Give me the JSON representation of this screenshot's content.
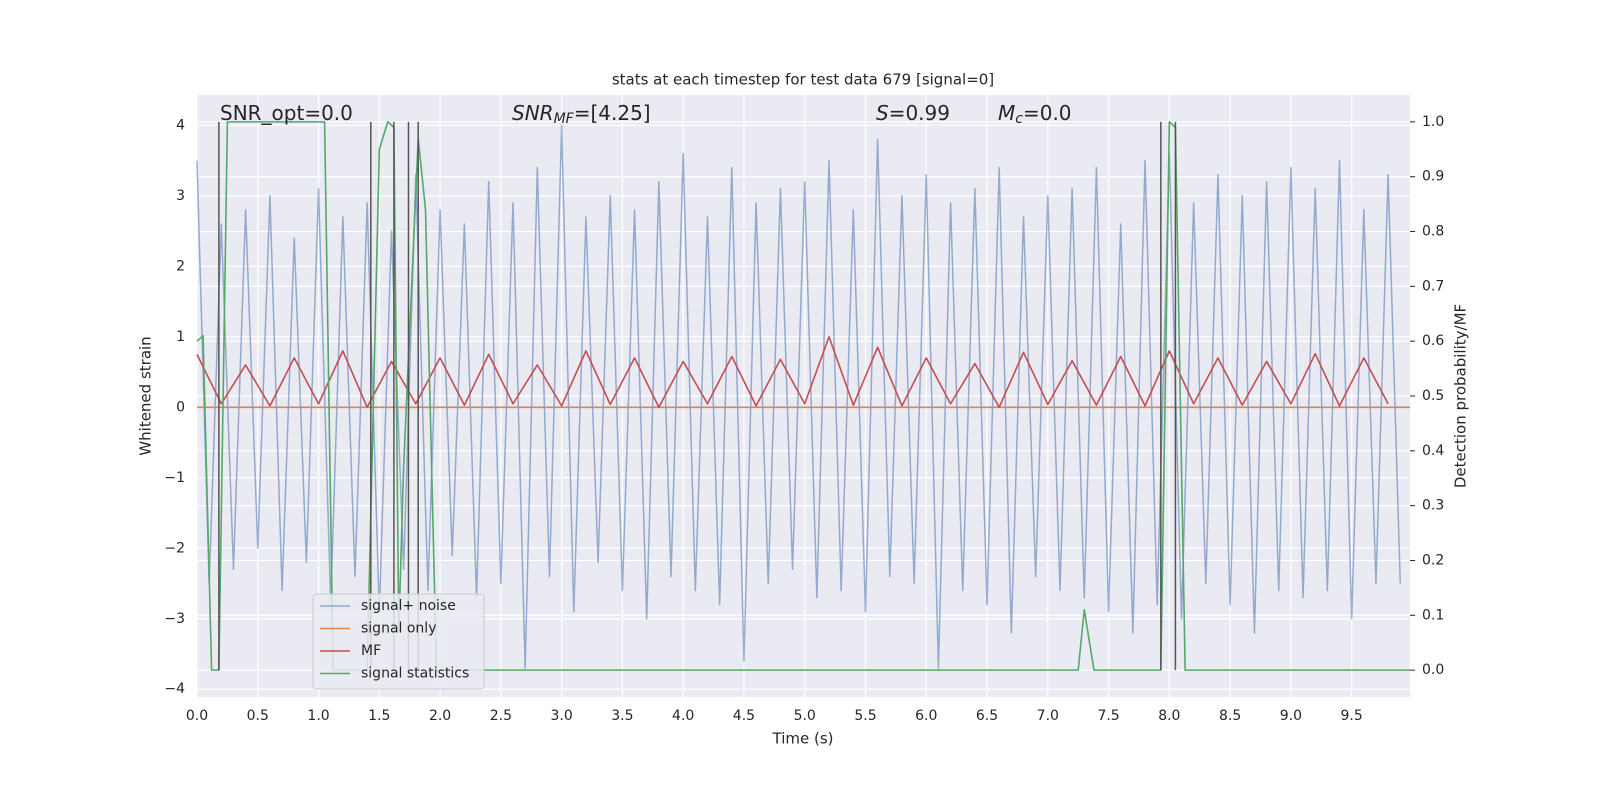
{
  "chart_data": {
    "type": "line",
    "title": "stats at each timestep for test data 679 [signal=0]",
    "xlabel": "Time (s)",
    "ylabel": "Whitened strain",
    "y2label": "Detection probability/MF",
    "annotations": [
      {
        "parts": [
          "SNR_opt=0.0"
        ]
      },
      {
        "parts": [
          "SNR",
          "MF",
          "=[4.25]"
        ]
      },
      {
        "parts": [
          "S",
          "=0.99"
        ]
      },
      {
        "parts": [
          "M",
          "c",
          "=0.0"
        ]
      }
    ],
    "xlim": [
      0,
      9.98
    ],
    "ylim": [
      -4.11,
      4.43
    ],
    "y2lim": [
      -0.049,
      1.049
    ],
    "grid": true,
    "legend": "lower left",
    "xticks": [
      {
        "value": 0,
        "label": "0.0"
      },
      0.5,
      {
        "value": 1,
        "label": "1.0"
      },
      1.5,
      {
        "value": 2,
        "label": "2.0"
      },
      2.5,
      {
        "value": 3,
        "label": "3.0"
      },
      3.5,
      {
        "value": 4,
        "label": "4.0"
      },
      4.5,
      {
        "value": 5,
        "label": "5.0"
      },
      5.5,
      {
        "value": 6,
        "label": "6.0"
      },
      6.5,
      {
        "value": 7,
        "label": "7.0"
      },
      7.5,
      {
        "value": 8,
        "label": "8.0"
      },
      8.5,
      {
        "value": 9,
        "label": "9.0"
      },
      9.5
    ],
    "yticks": [
      {
        "value": -4,
        "label": "−4"
      },
      {
        "value": -3,
        "label": "−3"
      },
      {
        "value": -2,
        "label": "−2"
      },
      {
        "value": -1,
        "label": "−1"
      },
      0,
      1,
      2,
      3,
      4
    ],
    "y2ticks": [
      {
        "value": 0,
        "label": "0.0"
      },
      0.1,
      0.2,
      0.3,
      0.4,
      0.5,
      0.6,
      0.7,
      0.8,
      0.9,
      {
        "value": 1,
        "label": "1.0"
      }
    ],
    "vlines": [
      0.18,
      1.43,
      1.62,
      1.74,
      1.82,
      7.93,
      8.05
    ],
    "vline_color": "#555555",
    "series": [
      {
        "name": "signal+ noise",
        "color": "#4c72b0",
        "x": [
          0.0,
          0.1,
          0.2,
          0.3,
          0.4,
          0.5,
          0.6,
          0.7,
          0.8,
          0.9,
          1.0,
          1.1,
          1.2,
          1.3,
          1.4,
          1.5,
          1.6,
          1.7,
          1.8,
          1.9,
          2.0,
          2.1,
          2.2,
          2.3,
          2.4,
          2.5,
          2.6,
          2.7,
          2.8,
          2.9,
          3.0,
          3.1,
          3.2,
          3.3,
          3.4,
          3.5,
          3.6,
          3.7,
          3.8,
          3.9,
          4.0,
          4.1,
          4.2,
          4.3,
          4.4,
          4.5,
          4.6,
          4.7,
          4.8,
          4.9,
          5.0,
          5.1,
          5.2,
          5.3,
          5.4,
          5.5,
          5.6,
          5.7,
          5.8,
          5.9,
          6.0,
          6.1,
          6.2,
          6.3,
          6.4,
          6.5,
          6.6,
          6.7,
          6.8,
          6.9,
          7.0,
          7.1,
          7.2,
          7.3,
          7.4,
          7.5,
          7.6,
          7.7,
          7.8,
          7.9,
          8.0,
          8.1,
          8.2,
          8.3,
          8.4,
          8.5,
          8.6,
          8.7,
          8.8,
          8.9,
          9.0,
          9.1,
          9.2,
          9.3,
          9.4,
          9.5,
          9.6,
          9.7,
          9.8,
          9.9
        ],
        "values": [
          3.5,
          -2.5,
          2.6,
          -2.3,
          2.8,
          -2.0,
          3.0,
          -2.6,
          2.4,
          -2.2,
          3.1,
          -2.8,
          2.7,
          -2.4,
          2.9,
          -2.9,
          2.5,
          -2.3,
          3.3,
          -2.6,
          2.8,
          -2.1,
          2.6,
          -2.7,
          3.2,
          -2.5,
          2.9,
          -3.7,
          3.4,
          -2.4,
          4.0,
          -2.9,
          2.7,
          -2.2,
          3.0,
          -2.6,
          2.8,
          -3.0,
          3.2,
          -2.4,
          3.6,
          -2.6,
          2.7,
          -2.8,
          3.4,
          -3.6,
          2.9,
          -2.5,
          3.1,
          -2.3,
          3.2,
          -2.7,
          3.5,
          -2.6,
          2.8,
          -2.9,
          3.8,
          -2.4,
          3.0,
          -2.5,
          3.3,
          -3.7,
          2.9,
          -2.6,
          3.1,
          -2.8,
          3.4,
          -3.2,
          2.7,
          -2.4,
          3.0,
          -2.6,
          3.1,
          -2.7,
          3.4,
          -2.9,
          2.6,
          -3.2,
          3.5,
          -2.8,
          3.6,
          -3.0,
          2.9,
          -2.5,
          3.3,
          -2.8,
          3.0,
          -3.2,
          3.2,
          -2.6,
          3.4,
          -2.7,
          3.1,
          -2.6,
          3.5,
          -3.0,
          2.8,
          -2.5,
          3.3,
          -2.5
        ]
      },
      {
        "name": "signal only",
        "color": "#dd8452",
        "x": [
          0,
          9.98
        ],
        "values": [
          0,
          0
        ]
      },
      {
        "name": "MF",
        "color": "#c44e52",
        "x": [
          0.0,
          0.2,
          0.4,
          0.6,
          0.8,
          1.0,
          1.2,
          1.4,
          1.6,
          1.8,
          2.0,
          2.2,
          2.4,
          2.6,
          2.8,
          3.0,
          3.2,
          3.4,
          3.6,
          3.8,
          4.0,
          4.2,
          4.4,
          4.6,
          4.8,
          5.0,
          5.2,
          5.4,
          5.6,
          5.8,
          6.0,
          6.2,
          6.4,
          6.6,
          6.8,
          7.0,
          7.2,
          7.4,
          7.6,
          7.8,
          8.0,
          8.2,
          8.4,
          8.6,
          8.8,
          9.0,
          9.2,
          9.4,
          9.6,
          9.8
        ],
        "values": [
          0.75,
          0.05,
          0.6,
          0.02,
          0.7,
          0.05,
          0.8,
          0.0,
          0.65,
          0.05,
          0.7,
          0.03,
          0.75,
          0.05,
          0.6,
          0.02,
          0.8,
          0.04,
          0.7,
          0.0,
          0.65,
          0.05,
          0.72,
          0.02,
          0.68,
          0.05,
          1.0,
          0.03,
          0.85,
          0.02,
          0.7,
          0.05,
          0.62,
          0.0,
          0.78,
          0.04,
          0.66,
          0.03,
          0.72,
          0.02,
          0.8,
          0.05,
          0.7,
          0.03,
          0.65,
          0.05,
          0.76,
          0.02,
          0.7,
          0.05
        ]
      },
      {
        "name": "signal statistics",
        "color": "#55a868",
        "axis": "y2",
        "x": [
          0,
          0.05,
          0.12,
          0.18,
          0.25,
          1.05,
          1.12,
          1.4,
          1.5,
          1.57,
          1.62,
          1.66,
          1.7,
          1.82,
          1.88,
          1.97,
          7.25,
          7.3,
          7.38,
          7.93,
          8.0,
          8.05,
          8.13,
          9.98
        ],
        "values": [
          0.6,
          0.61,
          0.0,
          0.0,
          1.0,
          1.0,
          0.0,
          0.0,
          0.95,
          1.0,
          0.99,
          0.07,
          0.37,
          0.97,
          0.84,
          0.0,
          0.0,
          0.11,
          0.0,
          0.0,
          1.0,
          0.99,
          0.0,
          0.0
        ]
      }
    ]
  }
}
